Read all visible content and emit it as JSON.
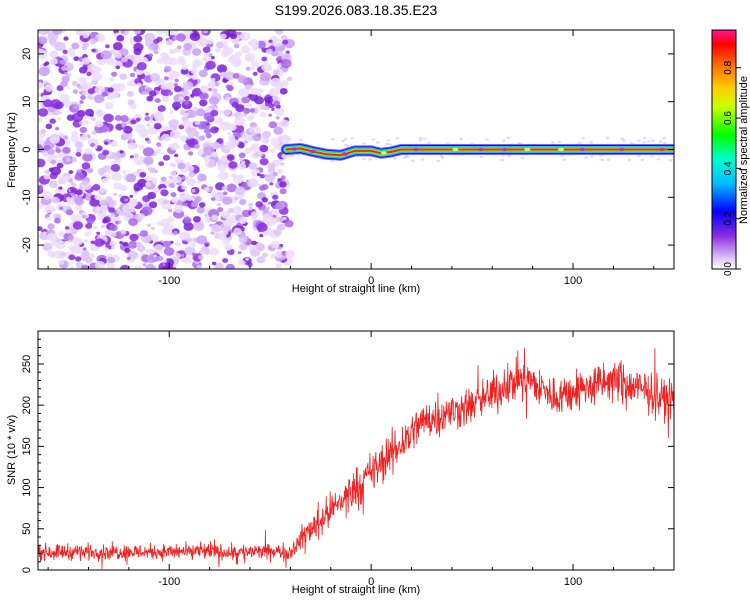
{
  "title": "S199.2026.083.18.35.E23",
  "chart_data": [
    {
      "type": "heatmap",
      "name": "spectrogram",
      "xlabel": "Height of straight line (km)",
      "ylabel": "Frequency (Hz)",
      "xlim": [
        -165,
        150
      ],
      "ylim": [
        -25,
        25
      ],
      "x_ticks": [
        -100,
        0,
        100
      ],
      "y_ticks": [
        -20,
        -10,
        0,
        10,
        20
      ],
      "noise_region_x": [
        -165,
        -40
      ],
      "signal_track": [
        {
          "x": -42,
          "f": 0.0
        },
        {
          "x": -35,
          "f": 0.2
        },
        {
          "x": -28,
          "f": -0.5
        },
        {
          "x": -22,
          "f": -1.0
        },
        {
          "x": -15,
          "f": -1.2
        },
        {
          "x": -8,
          "f": -0.3
        },
        {
          "x": 0,
          "f": -0.3
        },
        {
          "x": 5,
          "f": -0.8
        },
        {
          "x": 10,
          "f": -0.5
        },
        {
          "x": 15,
          "f": 0.0
        },
        {
          "x": 60,
          "f": 0.0
        },
        {
          "x": 100,
          "f": 0.0
        },
        {
          "x": 150,
          "f": 0.0
        }
      ],
      "colorbar": {
        "label": "Normalized spectral amplitude",
        "range": [
          0,
          0.95
        ],
        "ticks": [
          0.0,
          0.2,
          0.4,
          0.6,
          0.8
        ],
        "tick_labels": [
          "0.0",
          "0.2",
          "0.4",
          "0.6",
          "0.8"
        ],
        "colors": [
          "#ffffff",
          "#d9bdf5",
          "#8a2be2",
          "#0000ff",
          "#00ffff",
          "#00ff00",
          "#ffff00",
          "#ff8000",
          "#ff0000",
          "#ff1493"
        ]
      }
    },
    {
      "type": "line",
      "name": "snr",
      "xlabel": "Height of straight line (km)",
      "ylabel": "SNR (10 * v/v)",
      "xlim": [
        -165,
        150
      ],
      "ylim": [
        0,
        290
      ],
      "x_ticks": [
        -100,
        0,
        100
      ],
      "y_ticks": [
        0,
        50,
        100,
        150,
        200,
        250
      ],
      "color": "#ee2222",
      "envelope": [
        {
          "x": -165,
          "y": 22,
          "noise": 9
        },
        {
          "x": -40,
          "y": 22,
          "noise": 9
        },
        {
          "x": -32,
          "y": 45,
          "noise": 15
        },
        {
          "x": -10,
          "y": 95,
          "noise": 22
        },
        {
          "x": 10,
          "y": 140,
          "noise": 25
        },
        {
          "x": 25,
          "y": 180,
          "noise": 22
        },
        {
          "x": 50,
          "y": 200,
          "noise": 22
        },
        {
          "x": 75,
          "y": 235,
          "noise": 25
        },
        {
          "x": 90,
          "y": 210,
          "noise": 22
        },
        {
          "x": 120,
          "y": 230,
          "noise": 25
        },
        {
          "x": 150,
          "y": 205,
          "noise": 22
        }
      ]
    }
  ]
}
